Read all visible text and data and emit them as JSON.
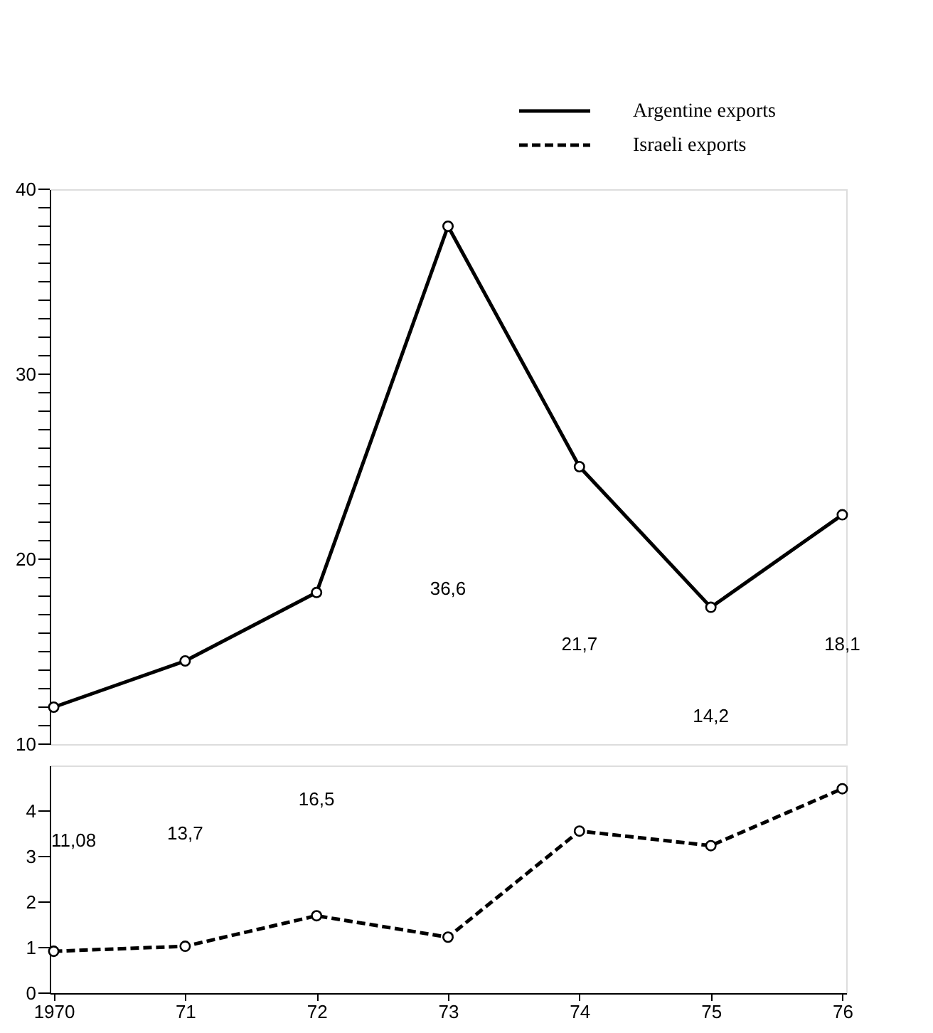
{
  "chart_data": [
    {
      "type": "line",
      "categories": [
        "1970",
        "71",
        "72",
        "73",
        "74",
        "75",
        "76"
      ],
      "series": [
        {
          "name": "Argentine exports",
          "color": "#000000",
          "line_style": "solid",
          "marker": "circle",
          "values": [
            12.0,
            14.5,
            18.2,
            38.0,
            25.0,
            17.4,
            22.4
          ]
        }
      ],
      "ylim": [
        10,
        40
      ],
      "yticks": [
        10,
        {
          "value": 11,
          "label": null
        },
        {
          "value": 12,
          "label": null
        },
        {
          "value": 13,
          "label": null
        },
        {
          "value": 14,
          "label": null
        },
        {
          "value": 15,
          "label": null
        },
        {
          "value": 16,
          "label": null
        },
        {
          "value": 17,
          "label": null
        },
        {
          "value": 18,
          "label": null
        },
        {
          "value": 19,
          "label": null
        },
        20,
        {
          "value": 21,
          "label": null
        },
        {
          "value": 22,
          "label": null
        },
        {
          "value": 23,
          "label": null
        },
        {
          "value": 24,
          "label": null
        },
        {
          "value": 25,
          "label": null
        },
        {
          "value": 26,
          "label": null
        },
        {
          "value": 27,
          "label": null
        },
        {
          "value": 28,
          "label": null
        },
        {
          "value": 29,
          "label": null
        },
        30,
        {
          "value": 31,
          "label": null
        },
        {
          "value": 32,
          "label": null
        },
        {
          "value": 33,
          "label": null
        },
        {
          "value": 34,
          "label": null
        },
        {
          "value": 35,
          "label": null
        },
        {
          "value": 36,
          "label": null
        },
        {
          "value": 37,
          "label": null
        },
        {
          "value": 38,
          "label": null
        },
        {
          "value": 39,
          "label": null
        },
        40
      ],
      "tick_labels": "y",
      "legend": "top right",
      "annotations": [
        "36,6",
        "21,7",
        "14,2",
        "18,1"
      ]
    },
    {
      "type": "line",
      "categories": [
        "1970",
        "71",
        "72",
        "73",
        "74",
        "75",
        "76"
      ],
      "series": [
        {
          "name": "Israeli exports",
          "color": "#000000",
          "line_style": "dashed",
          "marker": "circle",
          "values": [
            0.92,
            1.03,
            1.7,
            1.23,
            3.56,
            3.24,
            4.49
          ]
        }
      ],
      "ylim": [
        0,
        5
      ],
      "yticks": [
        0,
        1,
        2,
        3,
        4
      ],
      "annotations": [
        "11,08",
        "13,7",
        "16,5"
      ]
    }
  ]
}
